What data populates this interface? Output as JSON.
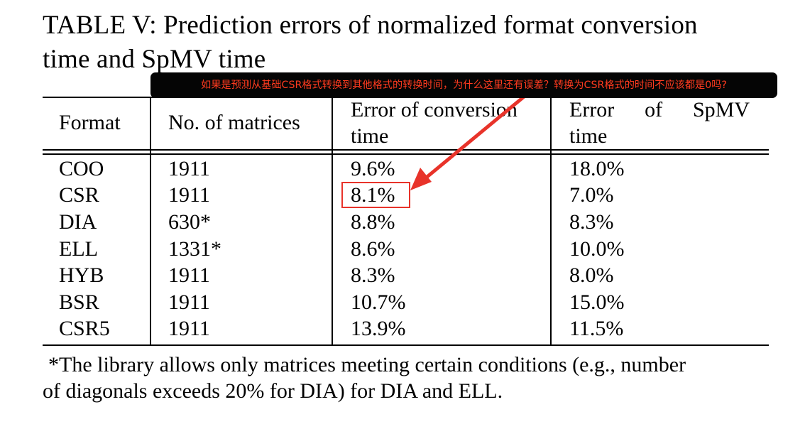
{
  "caption": {
    "line1": "TABLE V: Prediction errors of normalized format conversion",
    "line2": "time and SpMV time"
  },
  "annotation": {
    "text": "如果是预测从基础CSR格式转换到其他格式的转换时间，为什么这里还有误差？转换为CSR格式的时间不应该都是0吗?",
    "bg_color": "#050505",
    "text_color": "#ff3b1f"
  },
  "table": {
    "headers": {
      "format": "Format",
      "num_matrices": "No. of matrices",
      "conv_error_line1": "Error of conversion",
      "conv_error_line2": "time",
      "spmv_error_word1": "Error",
      "spmv_error_word2": "of",
      "spmv_error_word3": "SpMV",
      "spmv_error_line2": "time"
    },
    "rows": [
      {
        "format": "COO",
        "num": "1911",
        "conv": "9.6%",
        "spmv": "18.0%"
      },
      {
        "format": "CSR",
        "num": "1911",
        "conv": "8.1%",
        "spmv": "7.0%"
      },
      {
        "format": "DIA",
        "num": "630*",
        "conv": "8.8%",
        "spmv": "8.3%"
      },
      {
        "format": "ELL",
        "num": "1331*",
        "conv": "8.6%",
        "spmv": "10.0%"
      },
      {
        "format": "HYB",
        "num": "1911",
        "conv": "8.3%",
        "spmv": "8.0%"
      },
      {
        "format": "BSR",
        "num": "1911",
        "conv": "10.7%",
        "spmv": "15.0%"
      },
      {
        "format": "CSR5",
        "num": "1911",
        "conv": "13.9%",
        "spmv": "11.5%"
      }
    ]
  },
  "footnote": {
    "line1": "*The library allows only matrices meeting certain conditions (e.g., number",
    "line2": "of diagonals exceeds 20% for DIA) for DIA and ELL."
  },
  "highlight": {
    "color": "#e8332a"
  }
}
